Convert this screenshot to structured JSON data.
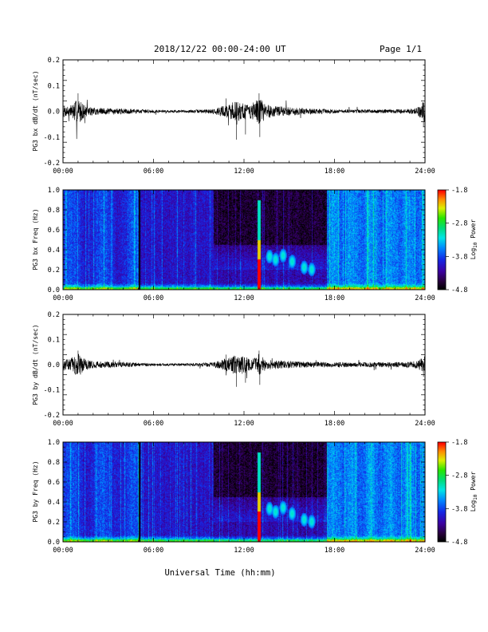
{
  "header": {
    "title": "2018/12/22  00:00-24:00 UT",
    "page": "Page 1/1"
  },
  "xlabel": "Universal Time (hh:mm)",
  "colorbar": {
    "label": "Log10 Power",
    "ticks": [
      "-1.8",
      "-2.8",
      "-3.8",
      "-4.8"
    ],
    "range": [
      -4.8,
      -1.8
    ]
  },
  "chart_data": [
    {
      "type": "line",
      "ylabel": "PG3 bx dB/dt (nT/sec)",
      "ylim": [
        -0.2,
        0.2
      ],
      "yticks": [
        "0.2",
        "0.1",
        "0.0",
        "-0.1",
        "-0.2"
      ],
      "xlim_hours": [
        0,
        24
      ],
      "xticks": [
        "00:00",
        "06:00",
        "12:00",
        "18:00",
        "24:00"
      ],
      "envelope": {
        "hours": [
          0,
          0.5,
          1,
          1.5,
          2,
          3,
          4,
          5,
          6,
          7,
          8,
          9,
          10,
          10.5,
          11,
          11.5,
          12,
          12.5,
          13,
          13.5,
          14,
          15,
          16,
          17,
          18,
          19,
          20,
          21,
          22,
          23,
          23.5,
          24
        ],
        "amplitude": [
          0.02,
          0.025,
          0.05,
          0.02,
          0.015,
          0.012,
          0.01,
          0.008,
          0.006,
          0.005,
          0.005,
          0.006,
          0.01,
          0.02,
          0.03,
          0.04,
          0.035,
          0.03,
          0.05,
          0.03,
          0.02,
          0.018,
          0.012,
          0.01,
          0.008,
          0.007,
          0.007,
          0.007,
          0.008,
          0.01,
          0.015,
          0.045
        ]
      }
    },
    {
      "type": "heatmap",
      "ylabel": "PG3 bx Freq (Hz)",
      "ylim": [
        0.0,
        1.0
      ],
      "yticks": [
        "1.0",
        "0.8",
        "0.6",
        "0.4",
        "0.2",
        "0.0"
      ],
      "xlim_hours": [
        0,
        24
      ],
      "xticks": [
        "00:00",
        "06:00",
        "12:00",
        "18:00",
        "24:00"
      ]
    },
    {
      "type": "line",
      "ylabel": "PG3 by dB/dt (nT/sec)",
      "ylim": [
        -0.2,
        0.2
      ],
      "yticks": [
        "0.2",
        "0.1",
        "0.0",
        "-0.1",
        "-0.2"
      ],
      "xlim_hours": [
        0,
        24
      ],
      "xticks": [
        "00:00",
        "06:00",
        "12:00",
        "18:00",
        "24:00"
      ],
      "envelope": {
        "hours": [
          0,
          0.5,
          1,
          1.5,
          2,
          3,
          4,
          5,
          6,
          7,
          8,
          9,
          10,
          10.5,
          11,
          11.5,
          12,
          12.5,
          13,
          13.5,
          14,
          15,
          16,
          17,
          18,
          19,
          20,
          21,
          22,
          23,
          23.5,
          24
        ],
        "amplitude": [
          0.02,
          0.025,
          0.05,
          0.02,
          0.015,
          0.012,
          0.01,
          0.008,
          0.006,
          0.005,
          0.005,
          0.006,
          0.01,
          0.02,
          0.03,
          0.04,
          0.035,
          0.025,
          0.045,
          0.02,
          0.018,
          0.015,
          0.012,
          0.01,
          0.01,
          0.01,
          0.01,
          0.01,
          0.01,
          0.012,
          0.015,
          0.035
        ]
      }
    },
    {
      "type": "heatmap",
      "ylabel": "PG3 by Freq (Hz)",
      "ylim": [
        0.0,
        1.0
      ],
      "yticks": [
        "1.0",
        "0.8",
        "0.6",
        "0.4",
        "0.2",
        "0.0"
      ],
      "xlim_hours": [
        0,
        24
      ],
      "xticks": [
        "00:00",
        "06:00",
        "12:00",
        "18:00",
        "24:00"
      ]
    }
  ]
}
